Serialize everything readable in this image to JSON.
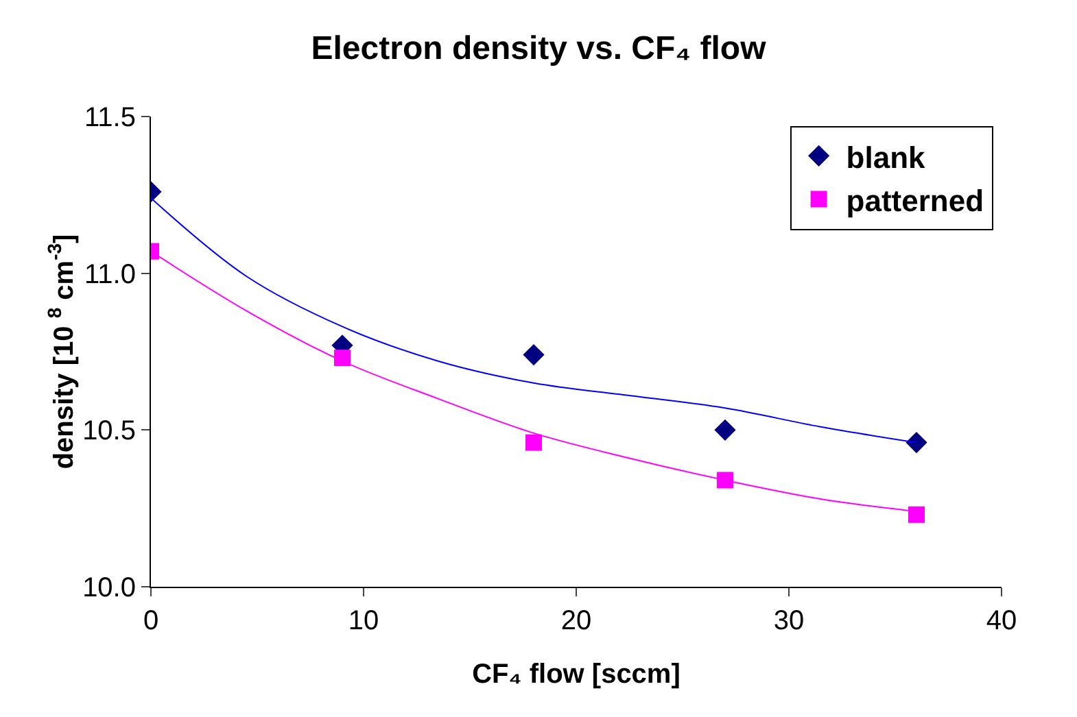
{
  "chart_data": {
    "type": "scatter",
    "title": "Electron density vs. CF₄ flow",
    "xlabel": "CF₄ flow [sccm]",
    "ylabel": "density [10 $^{8}$ cm$^{-3}$]",
    "x": [
      0,
      9,
      18,
      27,
      36
    ],
    "series": [
      {
        "name": "blank",
        "color": "#000080",
        "marker": "diamond",
        "values": [
          11.26,
          10.77,
          10.74,
          10.5,
          10.46
        ]
      },
      {
        "name": "patterned",
        "color": "#ff00ff",
        "marker": "square",
        "values": [
          11.07,
          10.73,
          10.46,
          10.34,
          10.23
        ]
      },
      {
        "type": "line",
        "color": "#0000ff",
        "marker": "none",
        "x": [
          0,
          4.5,
          9,
          13.5,
          18,
          22.5,
          27,
          31.5,
          36
        ],
        "values": [
          11.24,
          10.99,
          10.83,
          10.72,
          10.65,
          10.61,
          10.57,
          10.51,
          10.46
        ]
      },
      {
        "type": "line",
        "color": "#ff00ff",
        "marker": "none",
        "x": [
          0,
          4.5,
          9,
          13.5,
          18,
          22.5,
          27,
          31.5,
          36
        ],
        "values": [
          11.07,
          10.88,
          10.72,
          10.6,
          10.49,
          10.41,
          10.34,
          10.28,
          10.24
        ]
      }
    ],
    "xlim": [
      0,
      40
    ],
    "xticks": [
      0,
      10,
      20,
      30,
      40
    ],
    "ylim": [
      10,
      11.5
    ],
    "yticks": [
      {
        "value": 10,
        "label": "10.0"
      },
      {
        "value": 10.5,
        "label": "10.5"
      },
      {
        "value": 11,
        "label": "11.0"
      },
      {
        "value": 11.5,
        "label": "11.5"
      }
    ],
    "grid": false,
    "legend": "top right"
  }
}
